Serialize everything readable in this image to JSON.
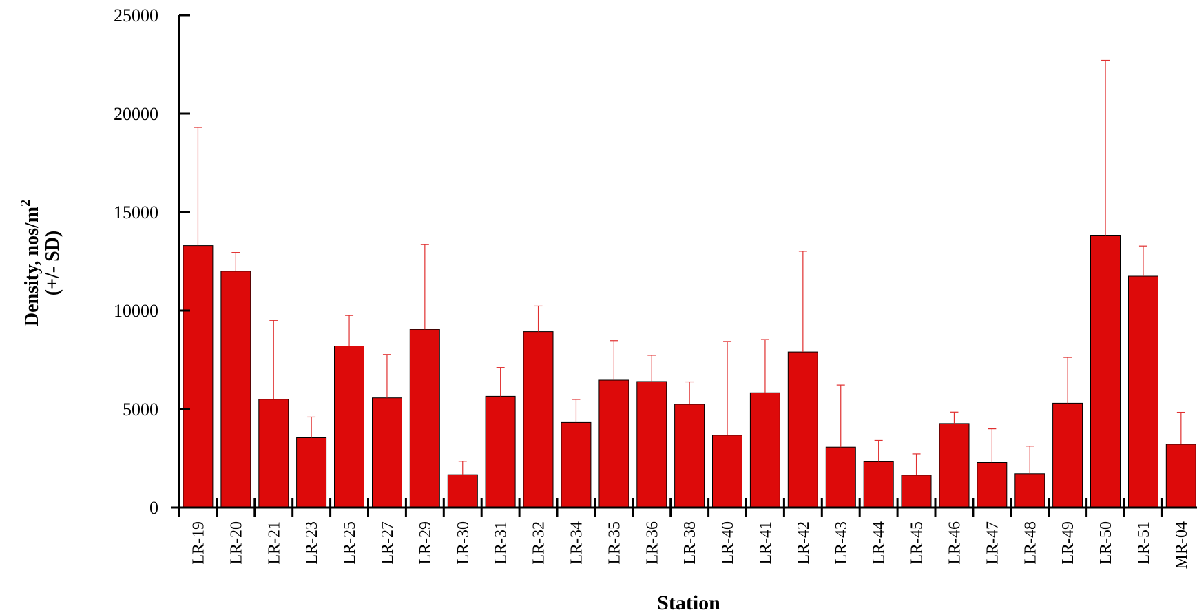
{
  "chart_data": {
    "type": "bar",
    "categories": [
      "LR-19",
      "LR-20",
      "LR-21",
      "LR-23",
      "LR-25",
      "LR-27",
      "LR-29",
      "LR-30",
      "LR-31",
      "LR-32",
      "LR-34",
      "LR-35",
      "LR-36",
      "LR-38",
      "LR-40",
      "LR-41",
      "LR-42",
      "LR-43",
      "LR-44",
      "LR-45",
      "LR-46",
      "LR-47",
      "LR-48",
      "LR-49",
      "LR-50",
      "LR-51",
      "MR-04"
    ],
    "values": [
      13300,
      12000,
      5500,
      3550,
      8200,
      5570,
      9050,
      1670,
      5650,
      8930,
      4320,
      6470,
      6400,
      5250,
      3680,
      5830,
      7900,
      3070,
      2330,
      1650,
      4270,
      2290,
      1720,
      5300,
      13830,
      11750,
      3220
    ],
    "error_sd": [
      6000,
      950,
      4000,
      1050,
      1550,
      2200,
      4300,
      680,
      1460,
      1300,
      1170,
      2000,
      1330,
      1130,
      4750,
      2700,
      5110,
      3150,
      1080,
      1080,
      580,
      1710,
      1400,
      2320,
      8880,
      1530,
      1620
    ],
    "xlabel": "Station",
    "ylabel_line1": "Density, nos/m",
    "ylabel_sup": "2",
    "ylabel_line2": "(+/- SD)",
    "ylim": [
      0,
      25000
    ],
    "yticks": [
      0,
      5000,
      10000,
      15000,
      20000,
      25000
    ],
    "grid": false,
    "bar_color": "#DD0A0A",
    "error_color": "#E03030"
  }
}
